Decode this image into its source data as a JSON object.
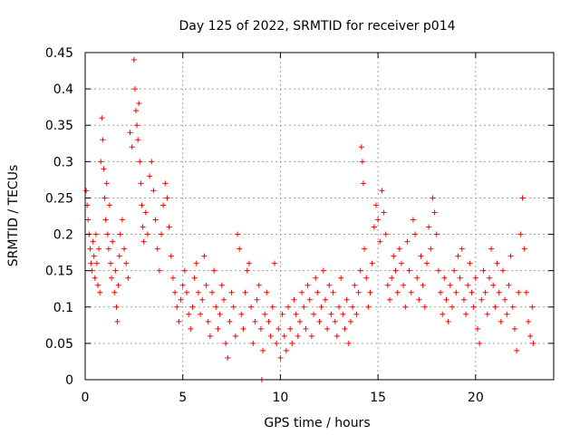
{
  "chart_data": {
    "type": "scatter",
    "title": "Day 125 of 2022, SRMTID for receiver p014",
    "xlabel": "GPS time / hours",
    "ylabel": "SRMTID / TECUs",
    "xlim": [
      0,
      24
    ],
    "ylim": [
      0,
      0.45
    ],
    "xticks": [
      0,
      5,
      10,
      15,
      20
    ],
    "yticks": [
      0,
      0.05,
      0.1,
      0.15,
      0.2,
      0.25,
      0.3,
      0.35,
      0.4,
      0.45
    ],
    "grid": true,
    "marker": "+",
    "color": "#ff0000",
    "series": [
      {
        "name": "SRMTID",
        "points": [
          [
            0.05,
            0.26
          ],
          [
            0.1,
            0.24
          ],
          [
            0.15,
            0.22
          ],
          [
            0.2,
            0.2
          ],
          [
            0.25,
            0.18
          ],
          [
            0.3,
            0.16
          ],
          [
            0.35,
            0.15
          ],
          [
            0.4,
            0.19
          ],
          [
            0.45,
            0.17
          ],
          [
            0.5,
            0.14
          ],
          [
            0.55,
            0.2
          ],
          [
            0.6,
            0.16
          ],
          [
            0.65,
            0.13
          ],
          [
            0.7,
            0.18
          ],
          [
            0.75,
            0.12
          ],
          [
            0.8,
            0.3
          ],
          [
            0.85,
            0.36
          ],
          [
            0.9,
            0.33
          ],
          [
            0.95,
            0.29
          ],
          [
            1.0,
            0.25
          ],
          [
            1.05,
            0.22
          ],
          [
            1.1,
            0.27
          ],
          [
            1.15,
            0.2
          ],
          [
            1.2,
            0.18
          ],
          [
            1.25,
            0.24
          ],
          [
            1.3,
            0.16
          ],
          [
            1.35,
            0.14
          ],
          [
            1.4,
            0.19
          ],
          [
            1.5,
            0.12
          ],
          [
            1.55,
            0.15
          ],
          [
            1.6,
            0.1
          ],
          [
            1.65,
            0.08
          ],
          [
            1.7,
            0.13
          ],
          [
            1.75,
            0.17
          ],
          [
            1.8,
            0.2
          ],
          [
            1.9,
            0.22
          ],
          [
            2.0,
            0.18
          ],
          [
            2.1,
            0.16
          ],
          [
            2.2,
            0.14
          ],
          [
            2.3,
            0.34
          ],
          [
            2.4,
            0.32
          ],
          [
            2.5,
            0.44
          ],
          [
            2.55,
            0.4
          ],
          [
            2.6,
            0.37
          ],
          [
            2.65,
            0.35
          ],
          [
            2.7,
            0.33
          ],
          [
            2.75,
            0.38
          ],
          [
            2.8,
            0.3
          ],
          [
            2.85,
            0.27
          ],
          [
            2.9,
            0.24
          ],
          [
            2.95,
            0.21
          ],
          [
            3.0,
            0.19
          ],
          [
            3.1,
            0.23
          ],
          [
            3.2,
            0.2
          ],
          [
            3.3,
            0.28
          ],
          [
            3.4,
            0.3
          ],
          [
            3.5,
            0.26
          ],
          [
            3.6,
            0.22
          ],
          [
            3.7,
            0.18
          ],
          [
            3.8,
            0.15
          ],
          [
            3.9,
            0.2
          ],
          [
            4.0,
            0.24
          ],
          [
            4.1,
            0.27
          ],
          [
            4.2,
            0.25
          ],
          [
            4.3,
            0.21
          ],
          [
            4.4,
            0.17
          ],
          [
            4.5,
            0.14
          ],
          [
            4.6,
            0.12
          ],
          [
            4.7,
            0.1
          ],
          [
            4.8,
            0.08
          ],
          [
            4.9,
            0.11
          ],
          [
            5.0,
            0.13
          ],
          [
            5.1,
            0.15
          ],
          [
            5.2,
            0.12
          ],
          [
            5.3,
            0.09
          ],
          [
            5.4,
            0.07
          ],
          [
            5.5,
            0.1
          ],
          [
            5.6,
            0.14
          ],
          [
            5.7,
            0.16
          ],
          [
            5.8,
            0.12
          ],
          [
            5.9,
            0.09
          ],
          [
            6.0,
            0.11
          ],
          [
            6.1,
            0.17
          ],
          [
            6.2,
            0.13
          ],
          [
            6.3,
            0.08
          ],
          [
            6.4,
            0.06
          ],
          [
            6.5,
            0.12
          ],
          [
            6.6,
            0.15
          ],
          [
            6.7,
            0.1
          ],
          [
            6.8,
            0.07
          ],
          [
            6.9,
            0.09
          ],
          [
            7.0,
            0.13
          ],
          [
            7.1,
            0.11
          ],
          [
            7.2,
            0.05
          ],
          [
            7.3,
            0.03
          ],
          [
            7.4,
            0.08
          ],
          [
            7.5,
            0.12
          ],
          [
            7.6,
            0.1
          ],
          [
            7.7,
            0.06
          ],
          [
            7.8,
            0.2
          ],
          [
            7.9,
            0.18
          ],
          [
            8.0,
            0.09
          ],
          [
            8.1,
            0.07
          ],
          [
            8.2,
            0.12
          ],
          [
            8.3,
            0.15
          ],
          [
            8.4,
            0.16
          ],
          [
            8.5,
            0.1
          ],
          [
            8.6,
            0.05
          ],
          [
            8.7,
            0.08
          ],
          [
            8.8,
            0.11
          ],
          [
            8.9,
            0.13
          ],
          [
            9.0,
            0.07
          ],
          [
            9.05,
            0.0
          ],
          [
            9.1,
            0.04
          ],
          [
            9.2,
            0.09
          ],
          [
            9.3,
            0.12
          ],
          [
            9.4,
            0.08
          ],
          [
            9.5,
            0.06
          ],
          [
            9.6,
            0.1
          ],
          [
            9.7,
            0.16
          ],
          [
            9.8,
            0.05
          ],
          [
            9.9,
            0.07
          ],
          [
            10.0,
            0.03
          ],
          [
            10.1,
            0.09
          ],
          [
            10.2,
            0.06
          ],
          [
            10.3,
            0.04
          ],
          [
            10.4,
            0.1
          ],
          [
            10.5,
            0.07
          ],
          [
            10.6,
            0.05
          ],
          [
            10.7,
            0.11
          ],
          [
            10.8,
            0.09
          ],
          [
            10.9,
            0.06
          ],
          [
            11.0,
            0.08
          ],
          [
            11.1,
            0.12
          ],
          [
            11.2,
            0.1
          ],
          [
            11.3,
            0.07
          ],
          [
            11.4,
            0.13
          ],
          [
            11.5,
            0.11
          ],
          [
            11.6,
            0.06
          ],
          [
            11.7,
            0.09
          ],
          [
            11.8,
            0.14
          ],
          [
            11.9,
            0.12
          ],
          [
            12.0,
            0.08
          ],
          [
            12.1,
            0.1
          ],
          [
            12.2,
            0.15
          ],
          [
            12.3,
            0.11
          ],
          [
            12.4,
            0.07
          ],
          [
            12.5,
            0.13
          ],
          [
            12.6,
            0.09
          ],
          [
            12.7,
            0.12
          ],
          [
            12.8,
            0.08
          ],
          [
            12.9,
            0.06
          ],
          [
            13.0,
            0.1
          ],
          [
            13.1,
            0.14
          ],
          [
            13.2,
            0.09
          ],
          [
            13.3,
            0.07
          ],
          [
            13.4,
            0.11
          ],
          [
            13.5,
            0.05
          ],
          [
            13.6,
            0.08
          ],
          [
            13.7,
            0.1
          ],
          [
            13.8,
            0.13
          ],
          [
            13.9,
            0.09
          ],
          [
            14.0,
            0.12
          ],
          [
            14.1,
            0.15
          ],
          [
            14.15,
            0.32
          ],
          [
            14.2,
            0.3
          ],
          [
            14.25,
            0.27
          ],
          [
            14.3,
            0.18
          ],
          [
            14.4,
            0.14
          ],
          [
            14.5,
            0.1
          ],
          [
            14.6,
            0.12
          ],
          [
            14.7,
            0.16
          ],
          [
            14.8,
            0.21
          ],
          [
            14.9,
            0.24
          ],
          [
            15.0,
            0.22
          ],
          [
            15.1,
            0.19
          ],
          [
            15.2,
            0.26
          ],
          [
            15.3,
            0.23
          ],
          [
            15.4,
            0.2
          ],
          [
            15.5,
            0.13
          ],
          [
            15.6,
            0.11
          ],
          [
            15.7,
            0.14
          ],
          [
            15.8,
            0.17
          ],
          [
            15.9,
            0.15
          ],
          [
            16.0,
            0.12
          ],
          [
            16.1,
            0.18
          ],
          [
            16.2,
            0.16
          ],
          [
            16.3,
            0.13
          ],
          [
            16.4,
            0.1
          ],
          [
            16.5,
            0.19
          ],
          [
            16.6,
            0.15
          ],
          [
            16.7,
            0.12
          ],
          [
            16.8,
            0.22
          ],
          [
            16.9,
            0.2
          ],
          [
            17.0,
            0.14
          ],
          [
            17.1,
            0.11
          ],
          [
            17.2,
            0.17
          ],
          [
            17.3,
            0.13
          ],
          [
            17.4,
            0.1
          ],
          [
            17.5,
            0.16
          ],
          [
            17.6,
            0.21
          ],
          [
            17.7,
            0.18
          ],
          [
            17.8,
            0.25
          ],
          [
            17.9,
            0.23
          ],
          [
            18.0,
            0.2
          ],
          [
            18.1,
            0.15
          ],
          [
            18.2,
            0.12
          ],
          [
            18.3,
            0.09
          ],
          [
            18.4,
            0.14
          ],
          [
            18.5,
            0.11
          ],
          [
            18.6,
            0.08
          ],
          [
            18.7,
            0.13
          ],
          [
            18.8,
            0.1
          ],
          [
            18.9,
            0.15
          ],
          [
            19.0,
            0.12
          ],
          [
            19.1,
            0.17
          ],
          [
            19.2,
            0.14
          ],
          [
            19.3,
            0.18
          ],
          [
            19.4,
            0.11
          ],
          [
            19.5,
            0.09
          ],
          [
            19.6,
            0.13
          ],
          [
            19.7,
            0.16
          ],
          [
            19.8,
            0.12
          ],
          [
            19.9,
            0.1
          ],
          [
            20.0,
            0.14
          ],
          [
            20.1,
            0.07
          ],
          [
            20.2,
            0.05
          ],
          [
            20.3,
            0.11
          ],
          [
            20.4,
            0.15
          ],
          [
            20.5,
            0.12
          ],
          [
            20.6,
            0.09
          ],
          [
            20.7,
            0.14
          ],
          [
            20.8,
            0.18
          ],
          [
            20.9,
            0.13
          ],
          [
            21.0,
            0.1
          ],
          [
            21.1,
            0.16
          ],
          [
            21.2,
            0.12
          ],
          [
            21.3,
            0.08
          ],
          [
            21.4,
            0.15
          ],
          [
            21.5,
            0.11
          ],
          [
            21.6,
            0.09
          ],
          [
            21.7,
            0.13
          ],
          [
            21.8,
            0.17
          ],
          [
            21.9,
            0.1
          ],
          [
            22.0,
            0.07
          ],
          [
            22.1,
            0.04
          ],
          [
            22.2,
            0.12
          ],
          [
            22.3,
            0.2
          ],
          [
            22.4,
            0.25
          ],
          [
            22.5,
            0.18
          ],
          [
            22.6,
            0.12
          ],
          [
            22.7,
            0.08
          ],
          [
            22.8,
            0.06
          ],
          [
            22.9,
            0.1
          ],
          [
            22.95,
            0.05
          ]
        ]
      }
    ]
  }
}
